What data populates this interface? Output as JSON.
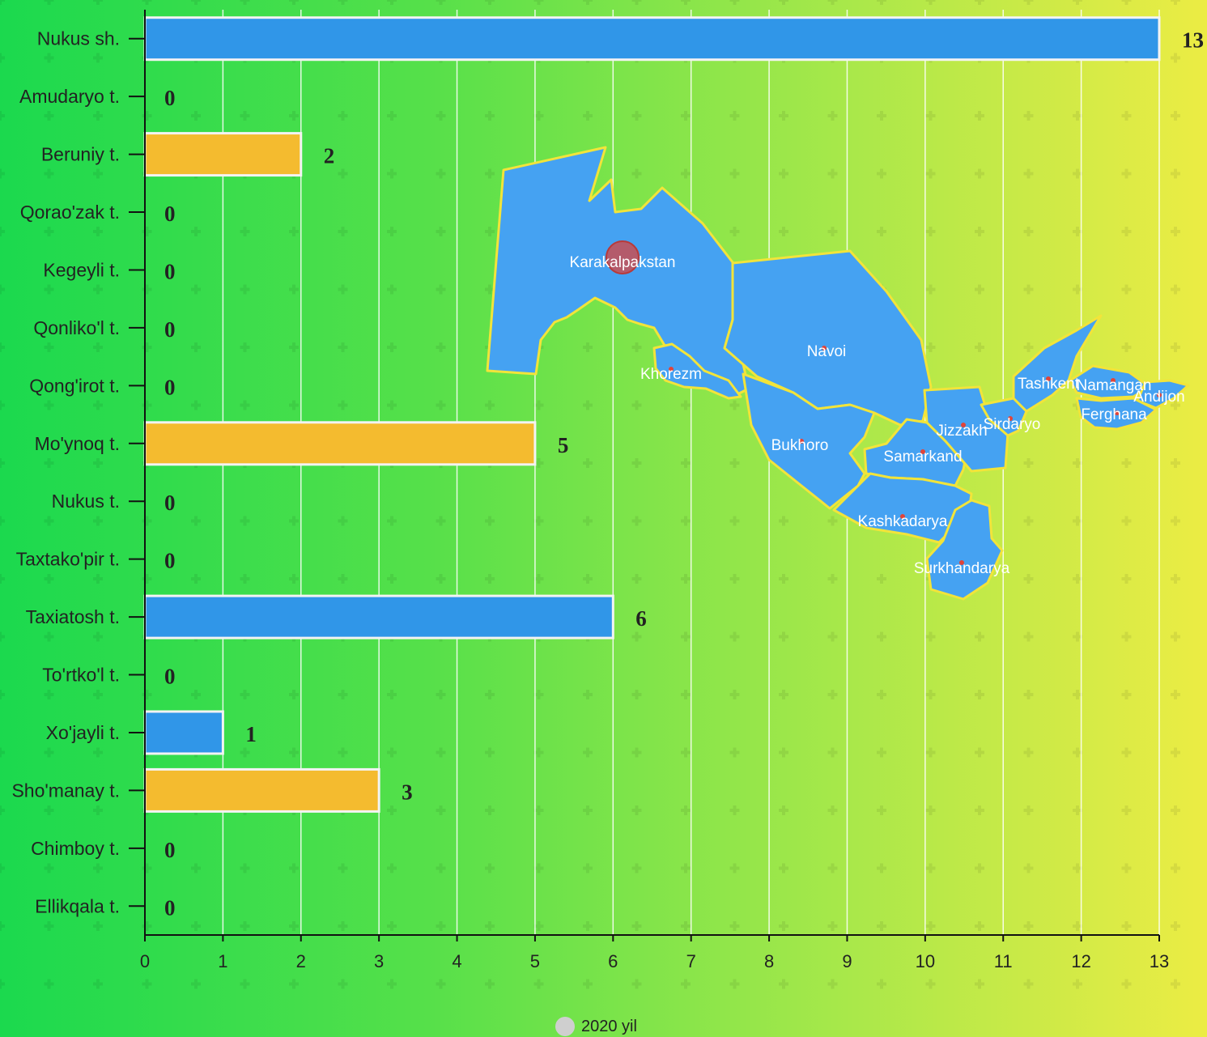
{
  "chart_data": {
    "type": "bar",
    "orientation": "horizontal",
    "categories": [
      "Nukus sh.",
      "Amudaryo t.",
      "Beruniy t.",
      "Qorao'zak t.",
      "Kegeyli t.",
      "Qonliko'l t.",
      "Qong'irot t.",
      "Mo'ynoq t.",
      "Nukus t.",
      "Taxtako'pir t.",
      "Taxiatosh t.",
      "To'rtko'l t.",
      "Xo'jayli t.",
      "Sho'manay t.",
      "Chimboy t.",
      "Ellikqala t."
    ],
    "values": [
      13,
      0,
      2,
      0,
      0,
      0,
      0,
      5,
      0,
      0,
      6,
      0,
      1,
      3,
      0,
      0
    ],
    "bar_colors": [
      "#3096e8",
      "#f4bb2f",
      "#f4bb2f",
      "#f4bb2f",
      "#f4bb2f",
      "#f4bb2f",
      "#f4bb2f",
      "#f4bb2f",
      "#f4bb2f",
      "#f4bb2f",
      "#3096e8",
      "#3096e8",
      "#3096e8",
      "#f4bb2f",
      "#f4bb2f",
      "#f4bb2f"
    ],
    "xlim": [
      0,
      13
    ],
    "xticks": [
      0,
      1,
      2,
      3,
      4,
      5,
      6,
      7,
      8,
      9,
      10,
      11,
      12,
      13
    ],
    "grid": true,
    "legend": [
      {
        "name": "2020 yil",
        "color": "#cfcfcf"
      }
    ],
    "legend_position": "bottom-center"
  },
  "map": {
    "fill": "#45a2f2",
    "stroke": "#f2e43a",
    "highlighted_region": "Karakalpakstan",
    "regions": [
      "Karakalpakstan",
      "Khorezm",
      "Navoi",
      "Bukhoro",
      "Samarkand",
      "Jizzakh",
      "Sirdaryo",
      "Tashkent",
      "Namangan",
      "Andijon",
      "Ferghana",
      "Kashkadarya",
      "Surkhandarya"
    ]
  }
}
